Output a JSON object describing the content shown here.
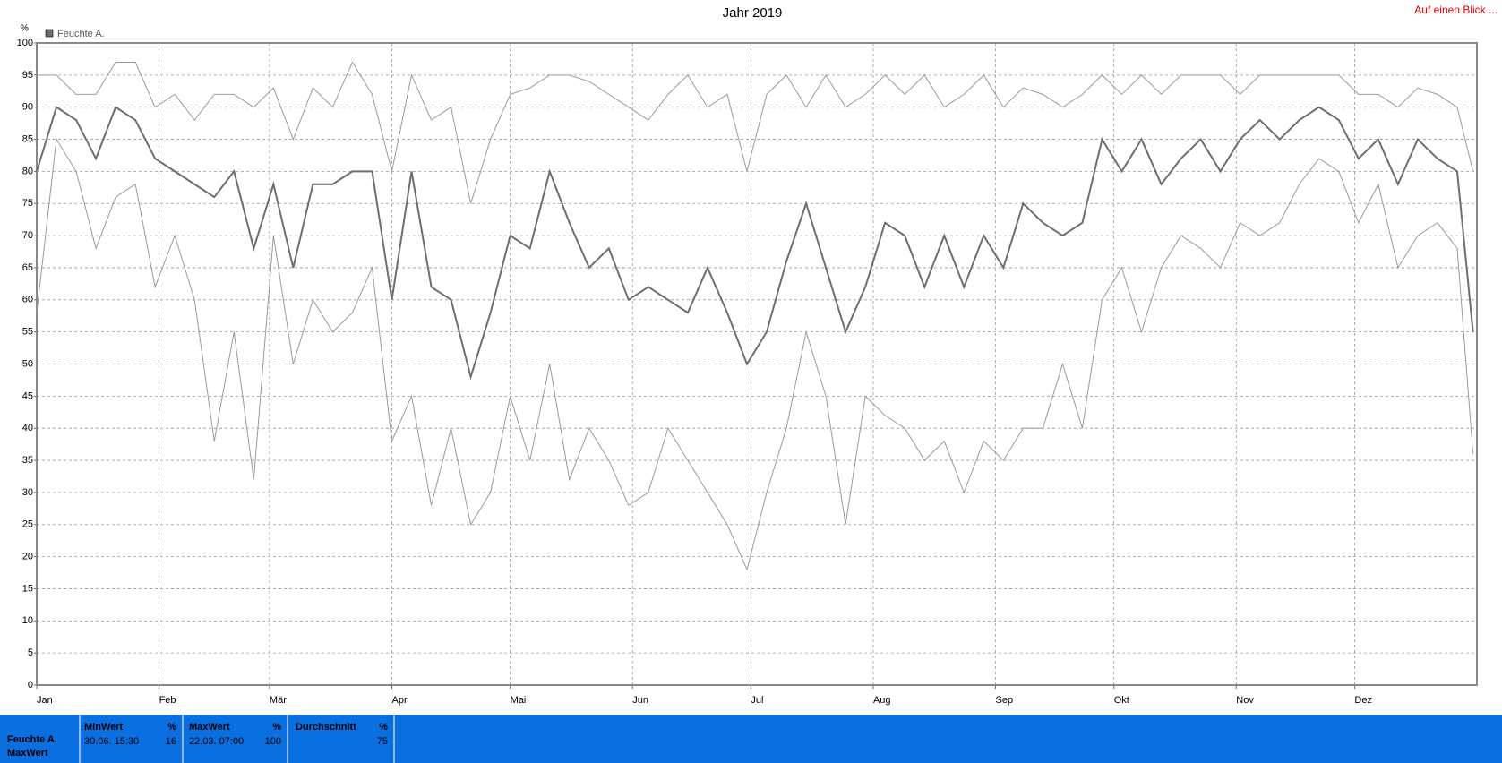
{
  "chart_data": {
    "type": "line",
    "title": "Jahr 2019",
    "y_label": "%",
    "link": "Auf einen Blick ...",
    "x": [
      0,
      5,
      10,
      15,
      20,
      25,
      30,
      35,
      40,
      45,
      50,
      55,
      60,
      65,
      70,
      75,
      80,
      85,
      90,
      95,
      100,
      105,
      110,
      115,
      120,
      125,
      130,
      135,
      140,
      145,
      150,
      155,
      160,
      165,
      170,
      175,
      180,
      185,
      190,
      195,
      200,
      205,
      210,
      215,
      220,
      225,
      230,
      235,
      240,
      245,
      250,
      255,
      260,
      265,
      270,
      275,
      280,
      285,
      290,
      295,
      300,
      305,
      310,
      315,
      320,
      325,
      330,
      335,
      340,
      345,
      350,
      355,
      360,
      364
    ],
    "series": [
      {
        "color": "#999999",
        "values": [
          95,
          95,
          92,
          92,
          97,
          97,
          90,
          92,
          88,
          92,
          92,
          90,
          93,
          85,
          93,
          90,
          97,
          92,
          80,
          95,
          88,
          90,
          75,
          85,
          92,
          93,
          95,
          95,
          94,
          92,
          90,
          88,
          92,
          95,
          90,
          92,
          80,
          92,
          95,
          90,
          95,
          90,
          92,
          95,
          92,
          95,
          90,
          92,
          95,
          90,
          93,
          92,
          90,
          92,
          95,
          92,
          95,
          92,
          95,
          95,
          95,
          92,
          95,
          95,
          95,
          95,
          95,
          92,
          92,
          90,
          93,
          92,
          90,
          80
        ]
      },
      {
        "name": "Feuchte A.",
        "color": "#6e6e6e",
        "values": [
          80,
          90,
          88,
          82,
          90,
          88,
          82,
          80,
          78,
          76,
          80,
          68,
          78,
          65,
          78,
          78,
          80,
          80,
          60,
          80,
          62,
          60,
          48,
          58,
          70,
          68,
          80,
          72,
          65,
          68,
          60,
          62,
          60,
          58,
          65,
          58,
          50,
          55,
          66,
          75,
          65,
          55,
          62,
          72,
          70,
          62,
          70,
          62,
          70,
          65,
          75,
          72,
          70,
          72,
          85,
          80,
          85,
          78,
          82,
          85,
          80,
          85,
          88,
          85,
          88,
          90,
          88,
          82,
          85,
          78,
          85,
          82,
          80,
          55
        ]
      },
      {
        "color": "#999999",
        "values": [
          58,
          85,
          80,
          68,
          76,
          78,
          62,
          70,
          60,
          38,
          55,
          32,
          70,
          50,
          60,
          55,
          58,
          65,
          38,
          45,
          28,
          40,
          25,
          30,
          45,
          35,
          50,
          32,
          40,
          35,
          28,
          30,
          40,
          35,
          30,
          25,
          18,
          30,
          40,
          55,
          45,
          25,
          45,
          42,
          40,
          35,
          38,
          30,
          38,
          35,
          40,
          40,
          50,
          40,
          60,
          65,
          55,
          65,
          70,
          68,
          65,
          72,
          70,
          72,
          78,
          82,
          80,
          72,
          78,
          65,
          70,
          72,
          68,
          36
        ]
      }
    ],
    "xlim": [
      0,
      365
    ],
    "xticks": [
      {
        "value": 0,
        "label": "Jan"
      },
      {
        "value": 31,
        "label": "Feb"
      },
      {
        "value": 59,
        "label": "Mär"
      },
      {
        "value": 90,
        "label": "Apr"
      },
      {
        "value": 120,
        "label": "Mai"
      },
      {
        "value": 151,
        "label": "Jun"
      },
      {
        "value": 181,
        "label": "Jul"
      },
      {
        "value": 212,
        "label": "Aug"
      },
      {
        "value": 243,
        "label": "Sep"
      },
      {
        "value": 273,
        "label": "Okt"
      },
      {
        "value": 304,
        "label": "Nov"
      },
      {
        "value": 334,
        "label": "Dez"
      }
    ],
    "ylim": [
      0,
      100
    ],
    "yticks": [
      0,
      5,
      10,
      15,
      20,
      25,
      30,
      35,
      40,
      45,
      50,
      55,
      60,
      65,
      70,
      75,
      80,
      85,
      90,
      95,
      100
    ],
    "grid": true
  },
  "stats": {
    "row_label": "Feuchte A.",
    "row_sub": "MaxWert",
    "columns": [
      {
        "title": "MinWert",
        "unit": "%",
        "time": "30.06. 15:30",
        "value": "16"
      },
      {
        "title": "MaxWert",
        "unit": "%",
        "time": "22.03. 07:00",
        "value": "100"
      },
      {
        "title": "Durchschnitt",
        "unit": "%",
        "value": "75"
      }
    ]
  }
}
